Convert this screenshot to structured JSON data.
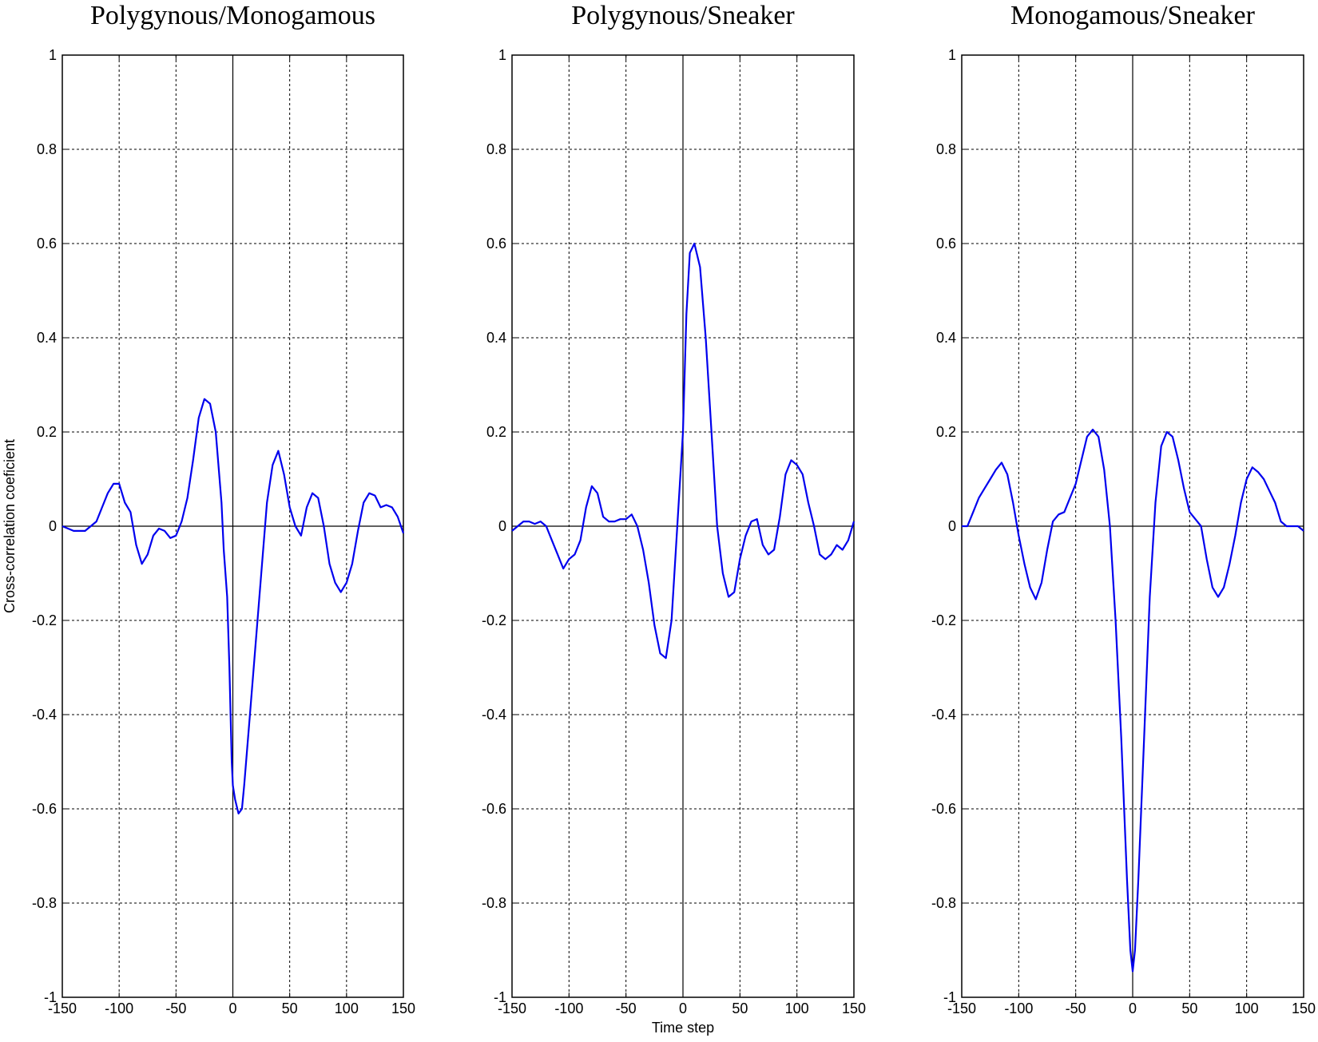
{
  "chart_data": [
    {
      "type": "line",
      "title": "Polygynous/Monogamous",
      "xlabel": "",
      "ylabel": "Cross-correlation coeficient",
      "xlim": [
        -150,
        150
      ],
      "ylim": [
        -1,
        1
      ],
      "xticks": [
        -150,
        -100,
        -50,
        0,
        50,
        100,
        150
      ],
      "yticks": [
        -1,
        -0.8,
        -0.6,
        -0.4,
        -0.2,
        0,
        0.2,
        0.4,
        0.6,
        0.8,
        1
      ],
      "grid": true,
      "color": "#0000ee",
      "x": [
        -150,
        -140,
        -130,
        -120,
        -115,
        -110,
        -105,
        -100,
        -95,
        -90,
        -85,
        -80,
        -75,
        -70,
        -65,
        -60,
        -55,
        -50,
        -45,
        -40,
        -35,
        -30,
        -25,
        -20,
        -15,
        -10,
        -8,
        -5,
        -3,
        -1,
        0,
        2,
        5,
        8,
        10,
        15,
        20,
        25,
        30,
        35,
        40,
        45,
        50,
        55,
        60,
        65,
        70,
        75,
        80,
        85,
        90,
        95,
        100,
        105,
        110,
        115,
        120,
        125,
        130,
        135,
        140,
        145,
        150
      ],
      "y": [
        0.0,
        -0.01,
        -0.01,
        0.01,
        0.04,
        0.07,
        0.09,
        0.09,
        0.05,
        0.03,
        -0.04,
        -0.08,
        -0.06,
        -0.02,
        -0.005,
        -0.01,
        -0.025,
        -0.02,
        0.01,
        0.06,
        0.14,
        0.23,
        0.27,
        0.26,
        0.2,
        0.05,
        -0.05,
        -0.15,
        -0.3,
        -0.5,
        -0.55,
        -0.58,
        -0.61,
        -0.6,
        -0.55,
        -0.4,
        -0.25,
        -0.1,
        0.05,
        0.13,
        0.16,
        0.11,
        0.04,
        0.0,
        -0.02,
        0.04,
        0.07,
        0.06,
        0.0,
        -0.08,
        -0.12,
        -0.14,
        -0.12,
        -0.08,
        -0.01,
        0.05,
        0.07,
        0.065,
        0.04,
        0.045,
        0.04,
        0.02,
        -0.015
      ]
    },
    {
      "type": "line",
      "title": "Polygynous/Sneaker",
      "xlabel": "Time step",
      "ylabel": "",
      "xlim": [
        -150,
        150
      ],
      "ylim": [
        -1,
        1
      ],
      "xticks": [
        -150,
        -100,
        -50,
        0,
        50,
        100,
        150
      ],
      "yticks": [
        -1,
        -0.8,
        -0.6,
        -0.4,
        -0.2,
        0,
        0.2,
        0.4,
        0.6,
        0.8,
        1
      ],
      "grid": true,
      "color": "#0000ee",
      "x": [
        -150,
        -145,
        -140,
        -135,
        -130,
        -125,
        -120,
        -115,
        -110,
        -105,
        -100,
        -95,
        -90,
        -85,
        -80,
        -75,
        -70,
        -65,
        -60,
        -55,
        -50,
        -45,
        -40,
        -35,
        -30,
        -25,
        -20,
        -15,
        -10,
        -5,
        0,
        3,
        6,
        10,
        15,
        20,
        25,
        30,
        35,
        40,
        45,
        50,
        55,
        60,
        65,
        70,
        75,
        80,
        85,
        90,
        95,
        100,
        105,
        110,
        115,
        120,
        125,
        130,
        135,
        140,
        145,
        150
      ],
      "y": [
        -0.01,
        0.0,
        0.01,
        0.01,
        0.005,
        0.01,
        0.0,
        -0.03,
        -0.06,
        -0.09,
        -0.07,
        -0.06,
        -0.03,
        0.04,
        0.085,
        0.07,
        0.02,
        0.01,
        0.01,
        0.015,
        0.015,
        0.025,
        0.0,
        -0.05,
        -0.12,
        -0.21,
        -0.27,
        -0.28,
        -0.2,
        0.0,
        0.2,
        0.45,
        0.58,
        0.6,
        0.55,
        0.4,
        0.2,
        0.0,
        -0.1,
        -0.15,
        -0.14,
        -0.07,
        -0.02,
        0.01,
        0.015,
        -0.04,
        -0.06,
        -0.05,
        0.02,
        0.11,
        0.14,
        0.13,
        0.11,
        0.05,
        0.0,
        -0.06,
        -0.07,
        -0.06,
        -0.04,
        -0.05,
        -0.03,
        0.01
      ]
    },
    {
      "type": "line",
      "title": "Monogamous/Sneaker",
      "xlabel": "",
      "ylabel": "",
      "xlim": [
        -150,
        150
      ],
      "ylim": [
        -1,
        1
      ],
      "xticks": [
        -150,
        -100,
        -50,
        0,
        50,
        100,
        150
      ],
      "yticks": [
        -1,
        -0.8,
        -0.6,
        -0.4,
        -0.2,
        0,
        0.2,
        0.4,
        0.6,
        0.8,
        1
      ],
      "grid": true,
      "color": "#0000ee",
      "x": [
        -150,
        -145,
        -140,
        -135,
        -130,
        -125,
        -120,
        -115,
        -110,
        -105,
        -100,
        -95,
        -90,
        -85,
        -80,
        -75,
        -70,
        -65,
        -60,
        -55,
        -50,
        -45,
        -40,
        -35,
        -30,
        -25,
        -20,
        -15,
        -10,
        -5,
        -2,
        0,
        2,
        5,
        10,
        15,
        20,
        25,
        30,
        35,
        40,
        45,
        50,
        55,
        60,
        65,
        70,
        75,
        80,
        85,
        90,
        95,
        100,
        105,
        110,
        115,
        120,
        125,
        130,
        135,
        140,
        145,
        150
      ],
      "y": [
        0.0,
        0.0,
        0.03,
        0.06,
        0.08,
        0.1,
        0.12,
        0.135,
        0.11,
        0.05,
        -0.02,
        -0.08,
        -0.13,
        -0.155,
        -0.12,
        -0.05,
        0.01,
        0.025,
        0.03,
        0.06,
        0.09,
        0.14,
        0.19,
        0.205,
        0.19,
        0.12,
        0.0,
        -0.2,
        -0.45,
        -0.75,
        -0.9,
        -0.945,
        -0.9,
        -0.75,
        -0.45,
        -0.15,
        0.05,
        0.17,
        0.2,
        0.19,
        0.14,
        0.08,
        0.03,
        0.015,
        0.0,
        -0.07,
        -0.13,
        -0.15,
        -0.13,
        -0.08,
        -0.02,
        0.05,
        0.1,
        0.125,
        0.115,
        0.1,
        0.075,
        0.05,
        0.01,
        0.0,
        0.0,
        0.0,
        -0.01
      ]
    }
  ]
}
